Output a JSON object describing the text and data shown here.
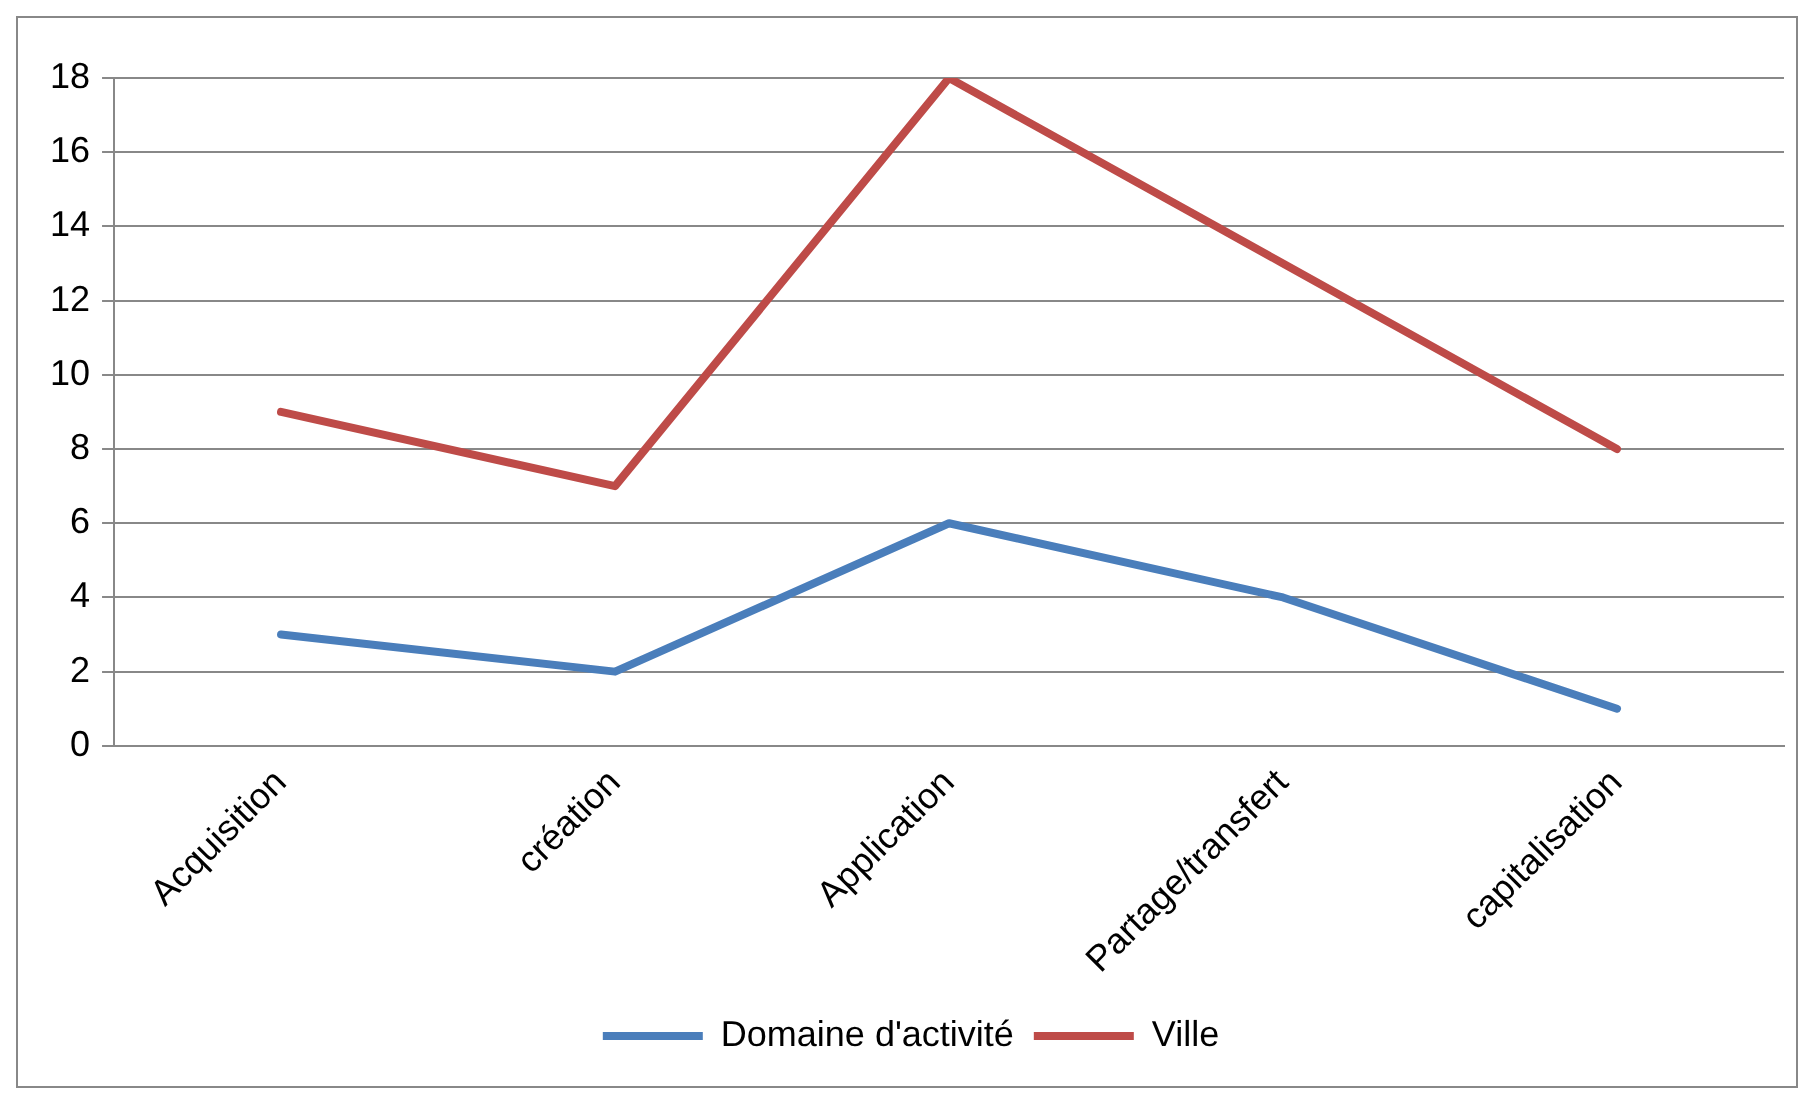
{
  "chart_data": {
    "type": "line",
    "categories": [
      "Acquisition",
      "création",
      "Application",
      "Partage/transfert",
      "capitalisation"
    ],
    "series": [
      {
        "name": "Domaine d'activité",
        "color": "#4a7ebb",
        "values": [
          3,
          2,
          6,
          4,
          1
        ]
      },
      {
        "name": "Ville",
        "color": "#be4b48",
        "values": [
          9,
          7,
          18,
          13,
          8
        ]
      }
    ],
    "ylim": [
      0,
      18
    ],
    "yticks": [
      0,
      2,
      4,
      6,
      8,
      10,
      12,
      14,
      16,
      18
    ],
    "grid": "y",
    "legend": "bottom",
    "marker": "none",
    "line_style": "solid"
  }
}
